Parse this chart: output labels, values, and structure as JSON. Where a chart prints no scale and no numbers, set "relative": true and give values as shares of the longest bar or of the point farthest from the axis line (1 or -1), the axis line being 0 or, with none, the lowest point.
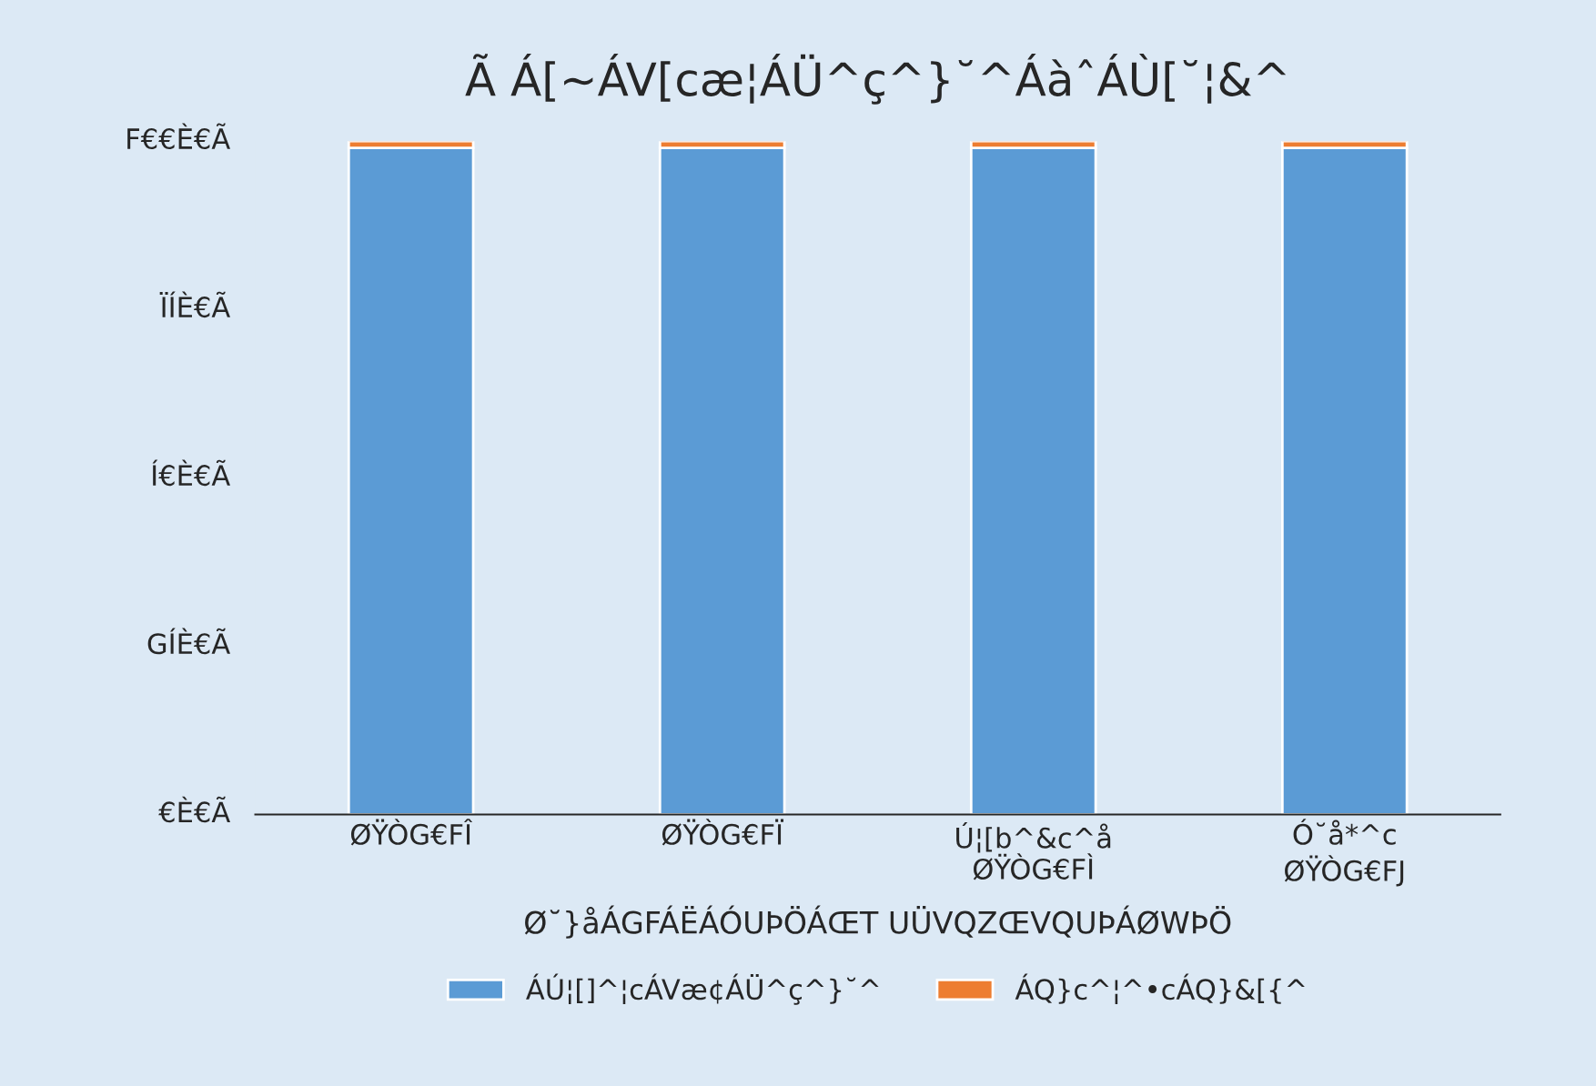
{
  "chart_data": {
    "type": "bar",
    "title": "Ã Á[~ÁV[cæ¦ÁÜ^ç^}˘^ÁàˆÁÙ[˘¦&^",
    "categories": [
      "ØŸÒG€FÎ",
      "ØŸÒG€FÏ",
      "Ú¦[b^&c^å\nØŸÒG€FÌ",
      "Ó˘å*^c\nØŸÒG€FJ"
    ],
    "series": [
      {
        "name": "ÁÚ¦[]^¦cÁVæ¢ÁÜ^ç^}˘^",
        "color": "#5b9bd5",
        "values": [
          0.99,
          0.99,
          0.99,
          0.99
        ]
      },
      {
        "name": "ÁQ}c^¦^•cÁQ}&[{^",
        "color": "#ed7d31",
        "values": [
          0.01,
          0.01,
          0.01,
          0.01
        ]
      }
    ],
    "stacked": true,
    "relative": true,
    "xlabel": "Ø˘}åÁGFÁËÁÓUÞÖÁŒT UÜVQZŒVQUÞÁØWÞÖ",
    "annotations": [
      "F€€È€Ã",
      "ÏÍÈ€Ã",
      "Í€È€Ã",
      "GÍÈ€Ã",
      "€È€Ã"
    ],
    "legend": "bottom"
  }
}
